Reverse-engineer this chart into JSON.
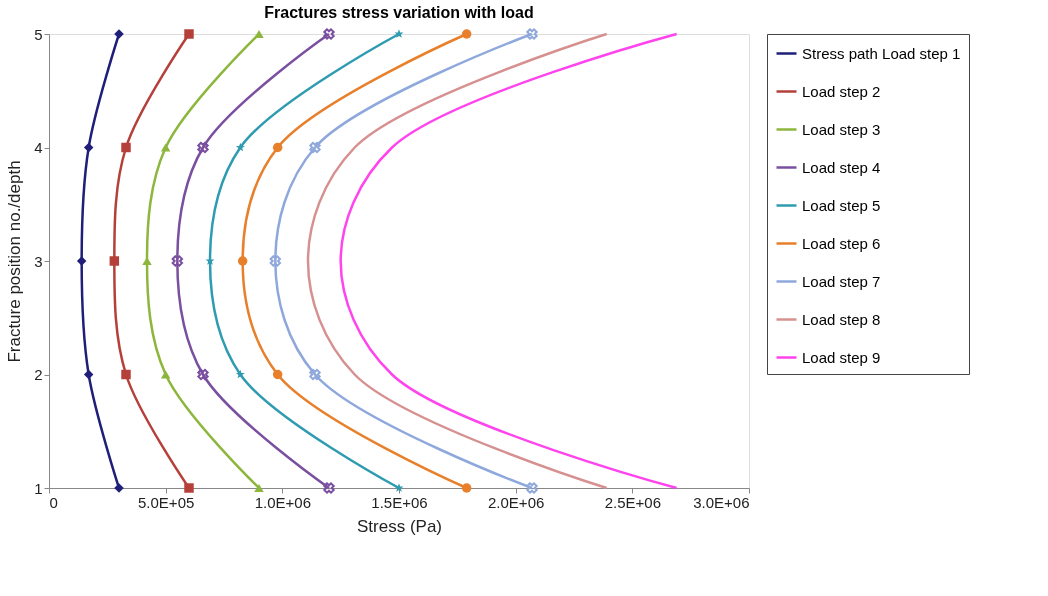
{
  "chart_data": {
    "type": "line",
    "title": "Fractures stress  variation with load",
    "xlabel": "Stress (Pa)",
    "ylabel": "Fracture position no./depth",
    "xlim": [
      0,
      3000000
    ],
    "xticks": [
      {
        "value": 0,
        "label": "0"
      },
      {
        "value": 500000,
        "label": "5.0E+05"
      },
      {
        "value": 1000000,
        "label": "1.0E+06"
      },
      {
        "value": 1500000,
        "label": "1.5E+06"
      },
      {
        "value": 2000000,
        "label": "2.0E+06"
      },
      {
        "value": 2500000,
        "label": "2.5E+06"
      },
      {
        "value": 3000000,
        "label": "3.0E+06"
      }
    ],
    "ylim": [
      1,
      5
    ],
    "yticks": [
      1,
      2,
      3,
      4,
      5
    ],
    "grid": false,
    "legend": "right",
    "series": [
      {
        "name": "Stress path Load step 1",
        "color": "#1f1f7a",
        "marker": "diamond",
        "x": [
          300000,
          170000,
          140000,
          170000,
          300000
        ],
        "values": [
          5,
          4,
          3,
          2,
          1
        ]
      },
      {
        "name": "Load step 2",
        "color": "#b5403a",
        "marker": "square",
        "x": [
          600000,
          330000,
          280000,
          330000,
          600000
        ],
        "values": [
          5,
          4,
          3,
          2,
          1
        ]
      },
      {
        "name": "Load step 3",
        "color": "#8db63c",
        "marker": "triangle",
        "x": [
          900000,
          500000,
          420000,
          500000,
          900000
        ],
        "values": [
          5,
          4,
          3,
          2,
          1
        ]
      },
      {
        "name": "Load step 4",
        "color": "#7a4fa0",
        "marker": "cross",
        "x": [
          1200000,
          660000,
          550000,
          660000,
          1200000
        ],
        "values": [
          5,
          4,
          3,
          2,
          1
        ]
      },
      {
        "name": "Load step 5",
        "color": "#2f9bb0",
        "marker": "star",
        "x": [
          1500000,
          820000,
          690000,
          820000,
          1500000
        ],
        "values": [
          5,
          4,
          3,
          2,
          1
        ]
      },
      {
        "name": "Load step 6",
        "color": "#e87f2a",
        "marker": "circle",
        "x": [
          1790000,
          980000,
          830000,
          980000,
          1790000
        ],
        "values": [
          5,
          4,
          3,
          2,
          1
        ]
      },
      {
        "name": "Load step 7",
        "color": "#8fa8dc",
        "marker": "cross",
        "x": [
          2070000,
          1140000,
          970000,
          1140000,
          2070000
        ],
        "values": [
          5,
          4,
          3,
          2,
          1
        ]
      },
      {
        "name": "Load step 8",
        "color": "#d69090",
        "marker": "none",
        "x": [
          2390000,
          1310000,
          1110000,
          1310000,
          2390000
        ],
        "values": [
          5,
          4,
          3,
          2,
          1
        ]
      },
      {
        "name": "Load step 9",
        "color": "#ff44ee",
        "marker": "none",
        "x": [
          2690000,
          1470000,
          1250000,
          1470000,
          2690000
        ],
        "values": [
          5,
          4,
          3,
          2,
          1
        ]
      }
    ]
  }
}
